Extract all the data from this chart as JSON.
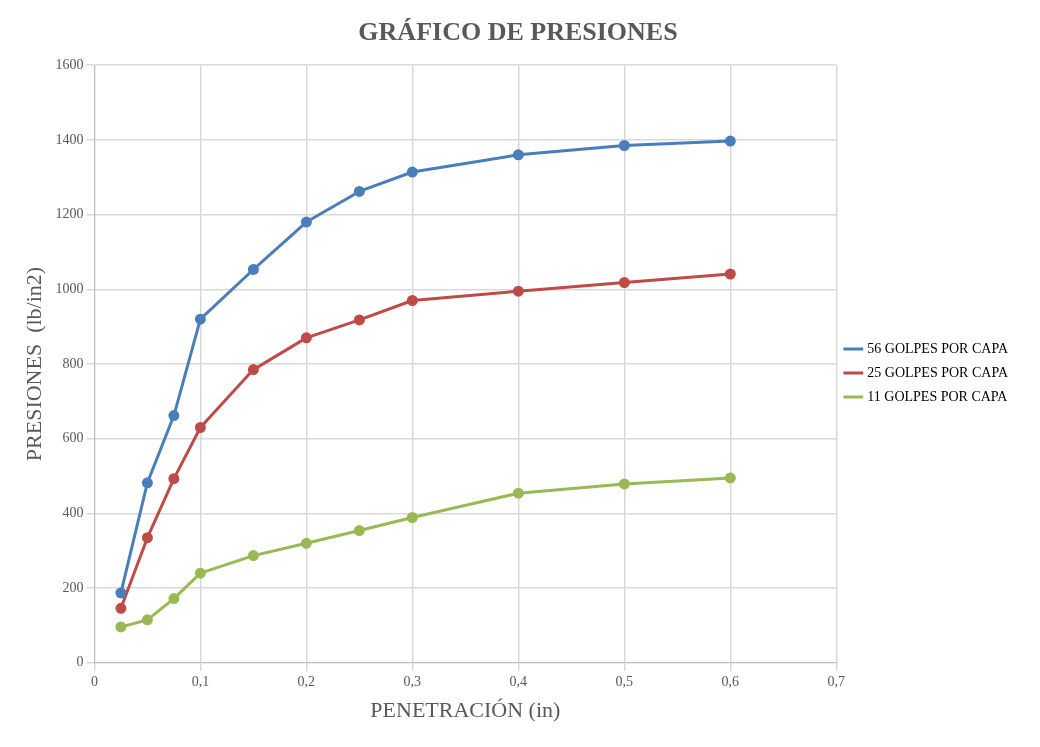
{
  "chart_data": {
    "type": "line",
    "title": "GRÁFICO DE PRESIONES",
    "xlabel": "PENETRACIÓN (in)",
    "ylabel": "PRESIONES  (lb/in2)",
    "x": [
      0.025,
      0.05,
      0.075,
      0.1,
      0.15,
      0.2,
      0.25,
      0.3,
      0.4,
      0.5,
      0.6
    ],
    "series": [
      {
        "name": "56 GOLPES POR CAPA",
        "color": "#4a7ebb",
        "values": [
          187,
          482,
          662,
          920,
          1053,
          1180,
          1262,
          1314,
          1360,
          1385,
          1397
        ]
      },
      {
        "name": "25 GOLPES POR CAPA",
        "color": "#be4b48",
        "values": [
          146,
          335,
          493,
          630,
          785,
          870,
          918,
          970,
          995,
          1018,
          1041
        ]
      },
      {
        "name": "11 GOLPES POR CAPA",
        "color": "#98b954",
        "values": [
          96,
          115,
          172,
          240,
          287,
          320,
          354,
          389,
          454,
          479,
          495
        ]
      }
    ],
    "xlim": [
      0,
      0.7
    ],
    "xticks": [
      {
        "value": 0,
        "label": "0"
      },
      {
        "value": 0.1,
        "label": "0,1"
      },
      {
        "value": 0.2,
        "label": "0,2"
      },
      {
        "value": 0.3,
        "label": "0,3"
      },
      {
        "value": 0.4,
        "label": "0,4"
      },
      {
        "value": 0.5,
        "label": "0,5"
      },
      {
        "value": 0.6,
        "label": "0,6"
      },
      {
        "value": 0.7,
        "label": "0,7"
      }
    ],
    "ylim": [
      0,
      1600
    ],
    "yticks": [
      0,
      200,
      400,
      600,
      800,
      1000,
      1200,
      1400,
      1600
    ],
    "grid": true,
    "legend": "right",
    "marker": "circle",
    "line_style": "solid"
  }
}
